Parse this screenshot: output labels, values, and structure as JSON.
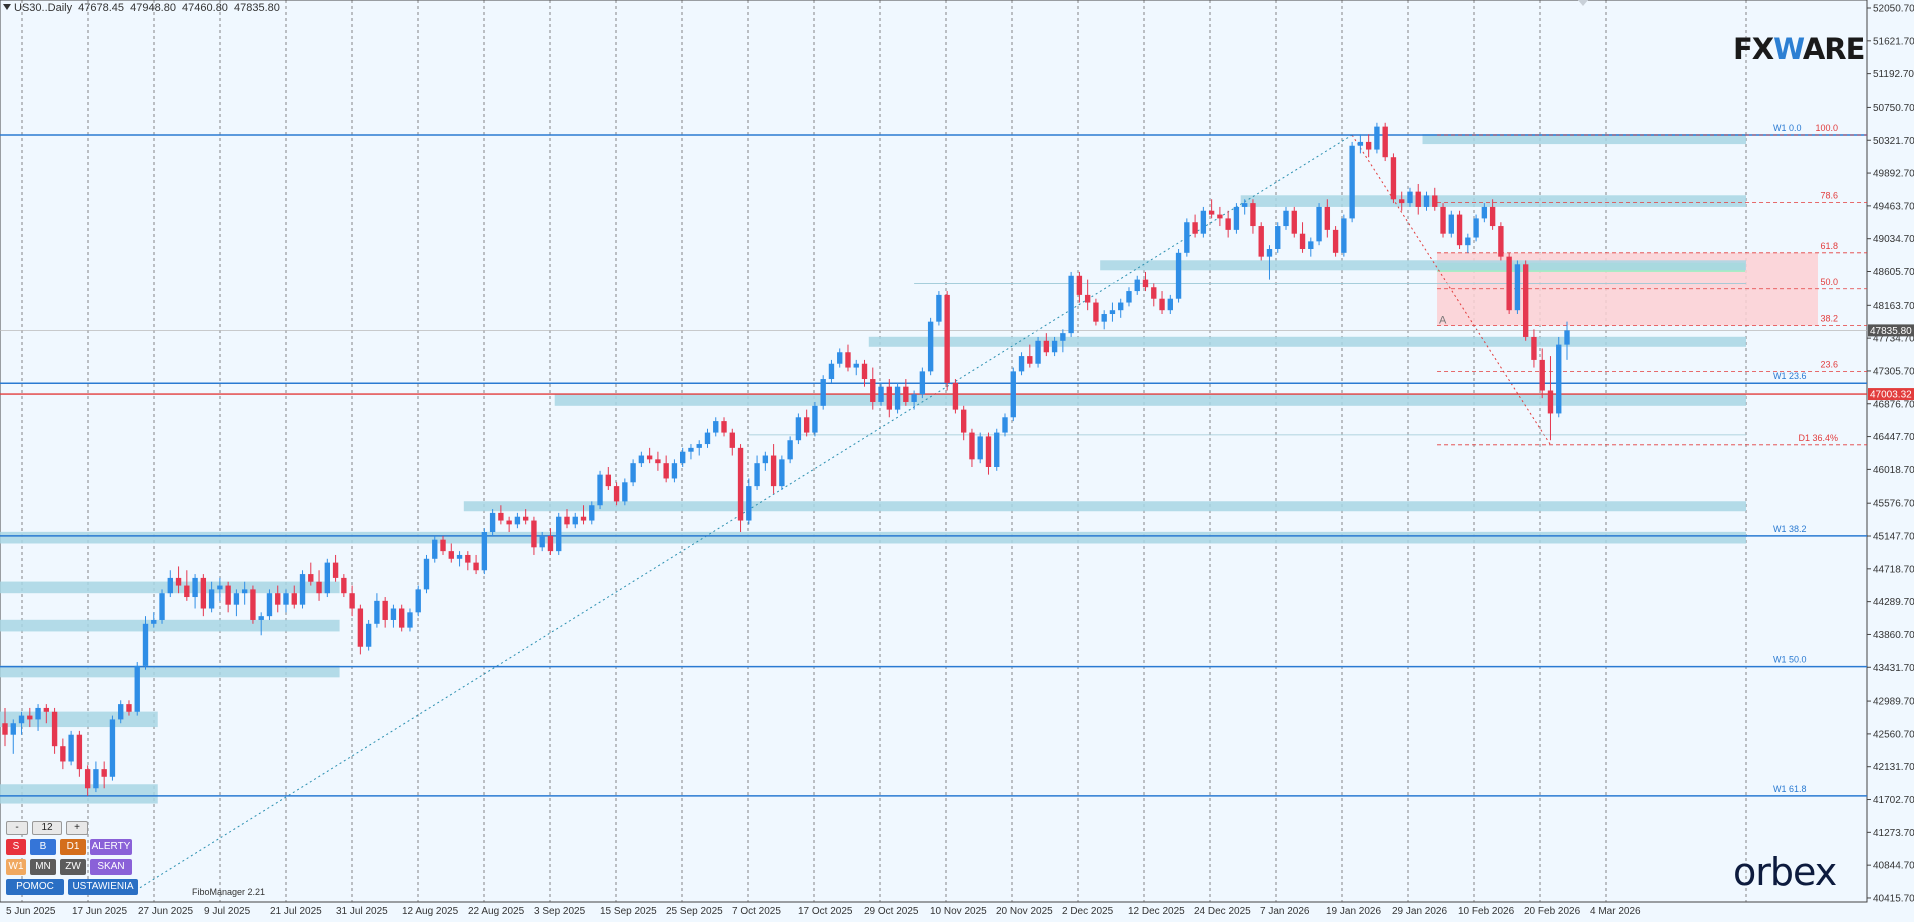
{
  "header": {
    "symbol": "US30..Daily",
    "open": "47678.45",
    "high": "47948.80",
    "low": "47460.80",
    "close": "47835.80"
  },
  "logos": {
    "fxware_pre": "FX",
    "fxware_accent": "W",
    "fxware_post": "ARE",
    "orbex": "orbex"
  },
  "panel": {
    "minus": "-",
    "value": "12",
    "plus": "+",
    "row2": [
      "S",
      "B",
      "D1",
      "ALERTY"
    ],
    "row3": [
      "W1",
      "MN",
      "ZW",
      "SKAN"
    ],
    "row4": [
      "POMOC",
      "USTAWIENIA"
    ],
    "colors": {
      "S": "#e8323c",
      "B": "#3575d8",
      "D1": "#d46e1c",
      "ALERTY": "#8a61d8",
      "W1": "#f0a860",
      "MN": "#5c5c5c",
      "ZW": "#5c5c5c",
      "SKAN": "#8a61d8",
      "POMOC": "#2a6fc4",
      "USTAWIENIA": "#2a6fc4"
    }
  },
  "fibo_manager": "FiboManager 2.21",
  "chart_data": {
    "type": "candlestick",
    "symbol": "US30",
    "timeframe": "Daily",
    "ylim": [
      40415.25,
      52050.7
    ],
    "y_ticks": [
      "52050.70",
      "51621.70",
      "51192.70",
      "50750.70",
      "50321.70",
      "49892.70",
      "49463.70",
      "49034.70",
      "48605.70",
      "48163.70",
      "47734.70",
      "47305.70",
      "46876.70",
      "46447.70",
      "46018.70",
      "45576.70",
      "45147.70",
      "44718.70",
      "44289.70",
      "43860.70",
      "43431.70",
      "42989.70",
      "42560.70",
      "42131.70",
      "41702.70",
      "41273.70",
      "40844.70",
      "40415.70"
    ],
    "x_ticks": [
      "5 Jun 2025",
      "17 Jun 2025",
      "27 Jun 2025",
      "9 Jul 2025",
      "21 Jul 2025",
      "31 Jul 2025",
      "12 Aug 2025",
      "22 Aug 2025",
      "3 Sep 2025",
      "15 Sep 2025",
      "25 Sep 2025",
      "7 Oct 2025",
      "17 Oct 2025",
      "29 Oct 2025",
      "10 Nov 2025",
      "20 Nov 2025",
      "2 Dec 2025",
      "12 Dec 2025",
      "24 Dec 2025",
      "7 Jan 2026",
      "19 Jan 2026",
      "29 Jan 2026",
      "10 Feb 2026",
      "20 Feb 2026",
      "4 Mar 2026"
    ],
    "candles": [
      [
        42700,
        42900,
        42400,
        42550
      ],
      [
        42550,
        42750,
        42300,
        42700
      ],
      [
        42700,
        42850,
        42550,
        42800
      ],
      [
        42800,
        42900,
        42650,
        42750
      ],
      [
        42750,
        42950,
        42600,
        42900
      ],
      [
        42900,
        42950,
        42700,
        42850
      ],
      [
        42850,
        42900,
        42300,
        42400
      ],
      [
        42400,
        42500,
        42100,
        42200
      ],
      [
        42200,
        42600,
        42150,
        42550
      ],
      [
        42550,
        42600,
        42000,
        42100
      ],
      [
        42100,
        42150,
        41750,
        41850
      ],
      [
        41850,
        42200,
        41800,
        42100
      ],
      [
        42100,
        42200,
        41850,
        42000
      ],
      [
        42000,
        42800,
        41950,
        42750
      ],
      [
        42750,
        43000,
        42700,
        42950
      ],
      [
        42950,
        43000,
        42800,
        42850
      ],
      [
        42850,
        43500,
        42800,
        43450
      ],
      [
        43450,
        44100,
        43400,
        44000
      ],
      [
        44000,
        44150,
        43950,
        44050
      ],
      [
        44050,
        44450,
        44000,
        44400
      ],
      [
        44400,
        44700,
        44350,
        44600
      ],
      [
        44600,
        44750,
        44400,
        44500
      ],
      [
        44500,
        44700,
        44300,
        44350
      ],
      [
        44350,
        44650,
        44200,
        44600
      ],
      [
        44600,
        44650,
        44100,
        44200
      ],
      [
        44200,
        44550,
        44150,
        44450
      ],
      [
        44450,
        44600,
        44300,
        44500
      ],
      [
        44500,
        44550,
        44150,
        44250
      ],
      [
        44250,
        44450,
        44100,
        44400
      ],
      [
        44400,
        44550,
        44250,
        44450
      ],
      [
        44450,
        44500,
        44000,
        44050
      ],
      [
        44050,
        44150,
        43850,
        44100
      ],
      [
        44100,
        44450,
        44050,
        44400
      ],
      [
        44400,
        44500,
        44150,
        44250
      ],
      [
        44250,
        44450,
        44150,
        44400
      ],
      [
        44400,
        44500,
        44200,
        44250
      ],
      [
        44250,
        44700,
        44200,
        44650
      ],
      [
        44650,
        44800,
        44500,
        44550
      ],
      [
        44550,
        44700,
        44300,
        44400
      ],
      [
        44400,
        44850,
        44350,
        44800
      ],
      [
        44800,
        44900,
        44550,
        44600
      ],
      [
        44600,
        44650,
        44350,
        44400
      ],
      [
        44400,
        44500,
        44100,
        44200
      ],
      [
        44200,
        44250,
        43600,
        43700
      ],
      [
        43700,
        44050,
        43650,
        44000
      ],
      [
        44000,
        44400,
        43950,
        44300
      ],
      [
        44300,
        44350,
        43950,
        44050
      ],
      [
        44050,
        44250,
        43950,
        44200
      ],
      [
        44200,
        44250,
        43900,
        43950
      ],
      [
        43950,
        44200,
        43900,
        44150
      ],
      [
        44150,
        44500,
        44100,
        44450
      ],
      [
        44450,
        44900,
        44400,
        44850
      ],
      [
        44850,
        45150,
        44800,
        45100
      ],
      [
        45100,
        45150,
        44900,
        44950
      ],
      [
        44950,
        45050,
        44800,
        44850
      ],
      [
        44850,
        44950,
        44750,
        44900
      ],
      [
        44900,
        44950,
        44700,
        44800
      ],
      [
        44800,
        44900,
        44650,
        44700
      ],
      [
        44700,
        45250,
        44650,
        45200
      ],
      [
        45200,
        45500,
        45150,
        45450
      ],
      [
        45450,
        45550,
        45300,
        45350
      ],
      [
        45350,
        45400,
        45200,
        45300
      ],
      [
        45300,
        45450,
        45250,
        45400
      ],
      [
        45400,
        45500,
        45300,
        45350
      ],
      [
        45350,
        45400,
        44900,
        45000
      ],
      [
        45000,
        45200,
        44950,
        45150
      ],
      [
        45150,
        45250,
        44900,
        44950
      ],
      [
        44950,
        45450,
        44900,
        45400
      ],
      [
        45400,
        45500,
        45250,
        45300
      ],
      [
        45300,
        45450,
        45250,
        45400
      ],
      [
        45400,
        45550,
        45300,
        45350
      ],
      [
        45350,
        45600,
        45300,
        45550
      ],
      [
        45550,
        46000,
        45500,
        45950
      ],
      [
        45950,
        46050,
        45750,
        45800
      ],
      [
        45800,
        45850,
        45550,
        45600
      ],
      [
        45600,
        45900,
        45550,
        45850
      ],
      [
        45850,
        46150,
        45800,
        46100
      ],
      [
        46100,
        46250,
        46050,
        46200
      ],
      [
        46200,
        46300,
        46100,
        46150
      ],
      [
        46150,
        46250,
        46000,
        46100
      ],
      [
        46100,
        46200,
        45850,
        45900
      ],
      [
        45900,
        46150,
        45850,
        46100
      ],
      [
        46100,
        46300,
        46050,
        46250
      ],
      [
        46250,
        46350,
        46150,
        46300
      ],
      [
        46300,
        46400,
        46200,
        46350
      ],
      [
        46350,
        46550,
        46300,
        46500
      ],
      [
        46500,
        46700,
        46450,
        46650
      ],
      [
        46650,
        46700,
        46450,
        46500
      ],
      [
        46500,
        46550,
        46200,
        46300
      ],
      [
        46300,
        46350,
        45200,
        45350
      ],
      [
        45350,
        45900,
        45300,
        45800
      ],
      [
        45800,
        46200,
        45750,
        46100
      ],
      [
        46100,
        46250,
        46000,
        46200
      ],
      [
        46200,
        46350,
        45700,
        45800
      ],
      [
        45800,
        46200,
        45750,
        46150
      ],
      [
        46150,
        46450,
        46100,
        46400
      ],
      [
        46400,
        46750,
        46350,
        46700
      ],
      [
        46700,
        46800,
        46450,
        46500
      ],
      [
        46500,
        46900,
        46450,
        46850
      ],
      [
        46850,
        47250,
        46800,
        47200
      ],
      [
        47200,
        47450,
        47150,
        47400
      ],
      [
        47400,
        47600,
        47350,
        47550
      ],
      [
        47550,
        47650,
        47300,
        47350
      ],
      [
        47350,
        47450,
        47250,
        47400
      ],
      [
        47400,
        47450,
        47100,
        47200
      ],
      [
        47200,
        47350,
        46800,
        46900
      ],
      [
        46900,
        47150,
        46850,
        47100
      ],
      [
        47100,
        47200,
        46700,
        46800
      ],
      [
        46800,
        47150,
        46750,
        47100
      ],
      [
        47100,
        47200,
        46850,
        46900
      ],
      [
        46900,
        47050,
        46800,
        47000
      ],
      [
        47000,
        47350,
        46950,
        47300
      ],
      [
        47300,
        48000,
        47250,
        47950
      ],
      [
        47950,
        48350,
        47900,
        48300
      ],
      [
        48300,
        48350,
        47050,
        47150
      ],
      [
        47150,
        47200,
        46750,
        46800
      ],
      [
        46800,
        46850,
        46400,
        46500
      ],
      [
        46500,
        46550,
        46050,
        46150
      ],
      [
        46150,
        46500,
        46100,
        46450
      ],
      [
        46450,
        46500,
        45950,
        46050
      ],
      [
        46050,
        46550,
        46000,
        46500
      ],
      [
        46500,
        46750,
        46450,
        46700
      ],
      [
        46700,
        47350,
        46650,
        47300
      ],
      [
        47300,
        47550,
        47250,
        47500
      ],
      [
        47500,
        47650,
        47350,
        47400
      ],
      [
        47400,
        47750,
        47350,
        47700
      ],
      [
        47700,
        47800,
        47500,
        47550
      ],
      [
        47550,
        47750,
        47500,
        47700
      ],
      [
        47700,
        47850,
        47550,
        47800
      ],
      [
        47800,
        48600,
        47750,
        48550
      ],
      [
        48550,
        48600,
        48200,
        48300
      ],
      [
        48300,
        48500,
        48100,
        48200
      ],
      [
        48200,
        48250,
        47900,
        47950
      ],
      [
        47950,
        48100,
        47850,
        48050
      ],
      [
        48050,
        48200,
        47950,
        48100
      ],
      [
        48100,
        48250,
        48000,
        48200
      ],
      [
        48200,
        48400,
        48150,
        48350
      ],
      [
        48350,
        48550,
        48300,
        48500
      ],
      [
        48500,
        48600,
        48350,
        48400
      ],
      [
        48400,
        48450,
        48150,
        48250
      ],
      [
        48250,
        48350,
        48050,
        48100
      ],
      [
        48100,
        48300,
        48050,
        48250
      ],
      [
        48250,
        48900,
        48200,
        48850
      ],
      [
        48850,
        49300,
        48800,
        49250
      ],
      [
        49250,
        49350,
        49050,
        49100
      ],
      [
        49100,
        49450,
        49050,
        49400
      ],
      [
        49400,
        49550,
        49300,
        49350
      ],
      [
        49350,
        49450,
        49200,
        49300
      ],
      [
        49300,
        49400,
        49050,
        49150
      ],
      [
        49150,
        49500,
        49100,
        49450
      ],
      [
        49450,
        49550,
        49350,
        49500
      ],
      [
        49500,
        49550,
        49100,
        49200
      ],
      [
        49200,
        49250,
        48750,
        48800
      ],
      [
        48800,
        48950,
        48500,
        48900
      ],
      [
        48900,
        49250,
        48850,
        49200
      ],
      [
        49200,
        49450,
        49150,
        49400
      ],
      [
        49400,
        49450,
        49050,
        49100
      ],
      [
        49100,
        49250,
        48850,
        48900
      ],
      [
        48900,
        49050,
        48800,
        49000
      ],
      [
        49000,
        49500,
        48950,
        49450
      ],
      [
        49450,
        49550,
        49050,
        49150
      ],
      [
        49150,
        49200,
        48800,
        48850
      ],
      [
        48850,
        49350,
        48800,
        49300
      ],
      [
        49300,
        50300,
        49250,
        50250
      ],
      [
        50250,
        50400,
        50150,
        50300
      ],
      [
        50300,
        50400,
        50100,
        50200
      ],
      [
        50200,
        50550,
        50150,
        50500
      ],
      [
        50500,
        50550,
        50050,
        50100
      ],
      [
        50100,
        50150,
        49500,
        49550
      ],
      [
        49550,
        49650,
        49400,
        49500
      ],
      [
        49500,
        49700,
        49450,
        49650
      ],
      [
        49650,
        49750,
        49350,
        49450
      ],
      [
        49450,
        49650,
        49400,
        49600
      ],
      [
        49600,
        49700,
        49400,
        49450
      ],
      [
        49450,
        49500,
        49050,
        49100
      ],
      [
        49100,
        49400,
        49050,
        49350
      ],
      [
        49350,
        49400,
        48900,
        48950
      ],
      [
        48950,
        49100,
        48850,
        49050
      ],
      [
        49050,
        49350,
        49000,
        49300
      ],
      [
        49300,
        49500,
        49250,
        49450
      ],
      [
        49450,
        49550,
        49150,
        49200
      ],
      [
        49200,
        49250,
        48750,
        48800
      ],
      [
        48800,
        48850,
        48050,
        48100
      ],
      [
        48100,
        48750,
        48050,
        48700
      ],
      [
        48700,
        48750,
        47700,
        47750
      ],
      [
        47750,
        47850,
        47350,
        47450
      ],
      [
        47450,
        47600,
        46950,
        47050
      ],
      [
        47050,
        47500,
        46400,
        46750
      ],
      [
        46750,
        47750,
        46700,
        47650
      ],
      [
        47650,
        47950,
        47450,
        47835
      ]
    ],
    "support_zones": [
      [
        42650,
        42800
      ],
      [
        41650,
        41850
      ],
      [
        43300,
        43400
      ],
      [
        43900,
        44000
      ],
      [
        44400,
        44500
      ],
      [
        45050,
        45150
      ],
      [
        45500,
        45550
      ],
      [
        46850,
        46950
      ],
      [
        47650,
        47700
      ],
      [
        48650,
        48700
      ],
      [
        49450,
        49550
      ],
      [
        50300,
        50350
      ]
    ],
    "weekly_fib_levels": [
      {
        "label": "W1 0.0",
        "price": 50390
      },
      {
        "label": "W1 23.6",
        "price": 47145
      },
      {
        "label": "W1 38.2",
        "price": 45150
      },
      {
        "label": "W1 50.0",
        "price": 43440
      },
      {
        "label": "W1 61.8",
        "price": 41750
      }
    ],
    "daily_fib_levels": [
      {
        "label": "100.0",
        "price": 50390
      },
      {
        "label": "78.6",
        "price": 49510
      },
      {
        "label": "61.8",
        "price": 48850
      },
      {
        "label": "50.0",
        "price": 48380
      },
      {
        "label": "38.2",
        "price": 47900
      },
      {
        "label": "23.6",
        "price": 47300
      },
      {
        "label": "D1 36.4%",
        "price": 46340
      }
    ],
    "current_price": {
      "label": "47835.80",
      "price": 47835.8
    },
    "red_line": {
      "label": "47003.32",
      "price": 47003.32
    },
    "box_label": "A",
    "colors": {
      "bull": "#2f8ee6",
      "bear": "#e5374f",
      "zone": "#a8d6e4",
      "fib_blue": "#2a7ad2",
      "fib_red": "#e23c3c",
      "pink_box": "#fdd0d4",
      "green_box": "#a6ecc4"
    }
  }
}
